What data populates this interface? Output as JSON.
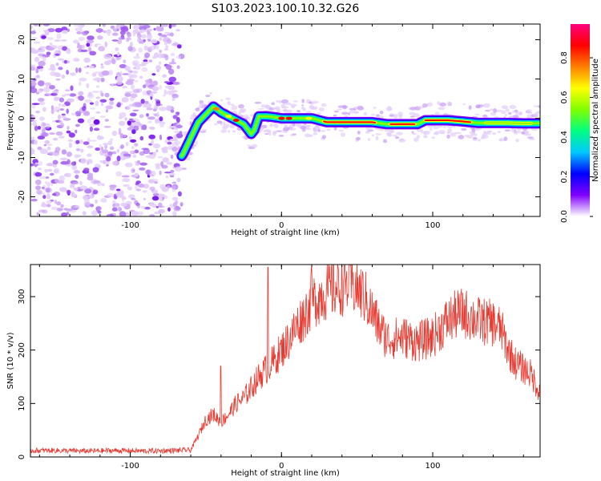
{
  "figure": {
    "title": "S103.2023.100.10.32.G26"
  },
  "chart_data": [
    {
      "type": "heatmap",
      "xlabel": "Height of straight line (km)",
      "ylabel": "Frequency (Hz)",
      "xlim": [
        -166,
        171
      ],
      "ylim": [
        -25,
        24
      ],
      "xticks": [
        -100,
        0,
        100
      ],
      "yticks": [
        -20,
        -10,
        0,
        10,
        20
      ],
      "colorbar": {
        "label": "Normalized spectral amplitude",
        "range": [
          0,
          0.97
        ],
        "ticks": [
          "0.0",
          "0.2",
          "0.4",
          "0.6",
          "0.8"
        ],
        "tick_values": [
          0,
          0.2,
          0.4,
          0.6,
          0.8
        ],
        "colormap": [
          "#ffffff",
          "#8000ff",
          "#0000ff",
          "#00c8ff",
          "#00ff80",
          "#80ff00",
          "#ffff00",
          "#ff8000",
          "#ff0000",
          "#ff0080"
        ]
      },
      "noise_region_x": [
        -166,
        -66
      ],
      "ridge": {
        "x": [
          -166,
          -70,
          -65,
          -60,
          -55,
          -50,
          -45,
          -40,
          -35,
          -30,
          -25,
          -22,
          -20,
          -18,
          -15,
          -10,
          -5,
          0,
          10,
          20,
          30,
          40,
          50,
          60,
          70,
          80,
          90,
          95,
          100,
          110,
          120,
          130,
          140,
          150,
          160,
          171
        ],
        "y": [
          -12,
          -12,
          -9,
          -5,
          -1,
          1,
          3,
          1.5,
          0.5,
          -0.5,
          -1.5,
          -3,
          -4,
          -3,
          0.5,
          0.5,
          0.3,
          0,
          0,
          0,
          -1,
          -1,
          -1,
          -1,
          -1.5,
          -1.5,
          -1.5,
          -0.5,
          -0.5,
          -0.5,
          -0.8,
          -1.2,
          -1.2,
          -1.2,
          -1.3,
          -1.3
        ]
      }
    },
    {
      "type": "line",
      "xlabel": "Height of straight line (km)",
      "ylabel": "SNR (10 * v/v)",
      "xlim": [
        -166,
        171
      ],
      "ylim": [
        0,
        360
      ],
      "xticks": [
        -100,
        0,
        100
      ],
      "yticks": [
        0,
        100,
        200,
        300
      ],
      "color": "#e83a30",
      "series": [
        {
          "x": [
            -166,
            -150,
            -130,
            -110,
            -90,
            -70,
            -60,
            -55,
            -50,
            -45,
            -40,
            -35,
            -30,
            -25,
            -20,
            -15,
            -10,
            -5,
            0,
            5,
            10,
            15,
            20,
            25,
            30,
            35,
            40,
            45,
            50,
            55,
            60,
            65,
            70,
            80,
            90,
            100,
            110,
            115,
            120,
            130,
            140,
            145,
            150,
            155,
            160,
            165,
            171
          ],
          "y": [
            12,
            12,
            11,
            12,
            11,
            12,
            13,
            40,
            70,
            80,
            65,
            80,
            100,
            110,
            130,
            150,
            165,
            180,
            200,
            220,
            245,
            265,
            290,
            300,
            310,
            315,
            320,
            325,
            315,
            300,
            270,
            240,
            220,
            225,
            215,
            225,
            255,
            265,
            270,
            255,
            250,
            240,
            200,
            175,
            165,
            155,
            120
          ]
        }
      ],
      "annotations": [
        {
          "x": -9,
          "y": 355
        },
        {
          "x": -40,
          "y": 170
        },
        {
          "x": 20,
          "y": 355
        },
        {
          "x": 45,
          "y": 360
        }
      ]
    }
  ]
}
